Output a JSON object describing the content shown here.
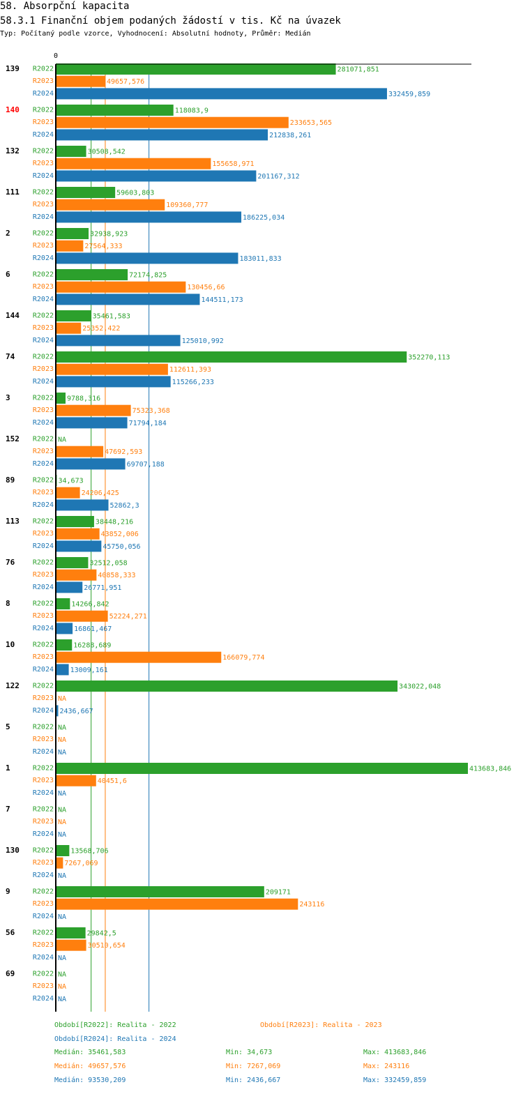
{
  "header": {
    "title": "58. Absorpční kapacita",
    "chart_title": "58.3.1 Finanční objem podaných žádostí v tis. Kč na úvazek",
    "subtitle": "Typ: Počítaný podle vzorce, Vyhodnocení: Absolutní hodnoty, Průměr: Medián"
  },
  "colors": {
    "R2022": "#2ca02c",
    "R2023": "#ff7f0e",
    "R2024": "#1f77b4",
    "highlight": "#ff0000",
    "text": "#000000"
  },
  "chart_data": {
    "type": "bar",
    "orientation": "horizontal",
    "title": "58.3.1 Finanční objem podaných žádostí v tis. Kč na úvazek",
    "xlim": [
      0,
      420000
    ],
    "x_tick_labels": [
      "0"
    ],
    "categories": [
      "139",
      "140",
      "132",
      "111",
      "2",
      "6",
      "144",
      "74",
      "3",
      "152",
      "89",
      "113",
      "76",
      "8",
      "10",
      "122",
      "5",
      "1",
      "7",
      "130",
      "9",
      "56",
      "69"
    ],
    "highlighted_category": "140",
    "series": [
      {
        "name": "R2022",
        "values": [
          281071.851,
          118083.9,
          30508.542,
          59603.803,
          32938.923,
          72174.825,
          35461.583,
          352270.113,
          9788.316,
          null,
          34.673,
          38448.216,
          32512.058,
          14266.842,
          16288.689,
          343022.048,
          null,
          413683.846,
          null,
          13568.706,
          209171,
          29842.5,
          null
        ],
        "labels": [
          "281071,851",
          "118083,9",
          "30508,542",
          "59603,803",
          "32938,923",
          "72174,825",
          "35461,583",
          "352270,113",
          "9788,316",
          "NA",
          "34,673",
          "38448,216",
          "32512,058",
          "14266,842",
          "16288,689",
          "343022,048",
          "NA",
          "413683,846",
          "NA",
          "13568,706",
          "209171",
          "29842,5",
          "NA"
        ]
      },
      {
        "name": "R2023",
        "values": [
          49657.576,
          233653.565,
          155658.971,
          109360.777,
          27564.333,
          130456.66,
          25352.422,
          112611.393,
          75323.368,
          47692.593,
          24206.425,
          43852.006,
          40858.333,
          52224.271,
          166079.774,
          null,
          null,
          40451.6,
          null,
          7267.069,
          243116,
          30510.654,
          null
        ],
        "labels": [
          "49657,576",
          "233653,565",
          "155658,971",
          "109360,777",
          "27564,333",
          "130456,66",
          "25352,422",
          "112611,393",
          "75323,368",
          "47692,593",
          "24206,425",
          "43852,006",
          "40858,333",
          "52224,271",
          "166079,774",
          "NA",
          "NA",
          "40451,6",
          "NA",
          "7267,069",
          "243116",
          "30510,654",
          "NA"
        ]
      },
      {
        "name": "R2024",
        "values": [
          332459.859,
          212838.261,
          201167.312,
          186225.034,
          183011.833,
          144511.173,
          125010.992,
          115266.233,
          71794.184,
          69707.188,
          52862.3,
          45750.056,
          26771.951,
          16861.467,
          13009.161,
          2436.667,
          null,
          null,
          null,
          null,
          null,
          null,
          null
        ],
        "labels": [
          "332459,859",
          "212838,261",
          "201167,312",
          "186225,034",
          "183011,833",
          "144511,173",
          "125010,992",
          "115266,233",
          "71794,184",
          "69707,188",
          "52862,3",
          "45750,056",
          "26771,951",
          "16861,467",
          "13009,161",
          "2436,667",
          "NA",
          "NA",
          "NA",
          "NA",
          "NA",
          "NA",
          "NA"
        ]
      }
    ],
    "medians": {
      "R2022": 35461.583,
      "R2023": 49657.576,
      "R2024": 93530.209
    }
  },
  "legend": {
    "r2022": "Období[R2022]: Realita - 2022",
    "r2023": "Období[R2023]: Realita - 2023",
    "r2024": "Období[R2024]: Realita - 2024"
  },
  "stats": [
    {
      "median": "Medián: 35461,583",
      "min": "Min: 34,673",
      "max": "Max: 413683,846"
    },
    {
      "median": "Medián: 49657,576",
      "min": "Min: 7267,069",
      "max": "Max: 243116"
    },
    {
      "median": "Medián: 93530,209",
      "min": "Min: 2436,667",
      "max": "Max: 332459,859"
    }
  ]
}
